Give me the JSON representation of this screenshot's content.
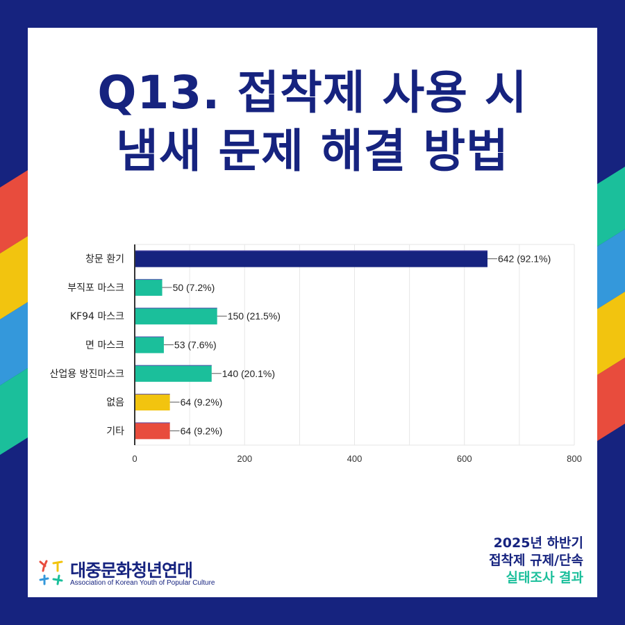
{
  "title": {
    "line1": "Q13. 접착제 사용 시",
    "line2": "냄새 문제 해결 방법"
  },
  "colors": {
    "background": "#16237f",
    "navy": "#16237f",
    "teal": "#1bbf9b",
    "yellow": "#f2c40f",
    "red": "#e84c3d",
    "blue": "#3498db"
  },
  "chart_data": {
    "type": "bar",
    "orientation": "horizontal",
    "categories": [
      "창문 환기",
      "부직포 마스크",
      "KF94 마스크",
      "면 마스크",
      "산업용 방진마스크",
      "없음",
      "기타"
    ],
    "values": [
      642,
      50,
      150,
      53,
      140,
      64,
      64
    ],
    "data_labels": [
      "642 (92.1%)",
      "50 (7.2%)",
      "150 (21.5%)",
      "53 (7.6%)",
      "140 (20.1%)",
      "64 (9.2%)",
      "64 (9.2%)"
    ],
    "bar_colors": [
      "#16237f",
      "#1bbf9b",
      "#1bbf9b",
      "#1bbf9b",
      "#1bbf9b",
      "#f2c40f",
      "#e84c3d"
    ],
    "xlim": [
      0,
      800
    ],
    "xticks": [
      "0",
      "200",
      "400",
      "600",
      "800"
    ],
    "grid": true,
    "title": "",
    "xlabel": "",
    "ylabel": ""
  },
  "footer": {
    "org_name": "대중문화청년연대",
    "org_name_en": "Association of Korean Youth of Popular Culture",
    "right_line1": "2025년 하반기",
    "right_line2": "접착제 규제/단속",
    "right_line3": "실태조사 결과"
  }
}
